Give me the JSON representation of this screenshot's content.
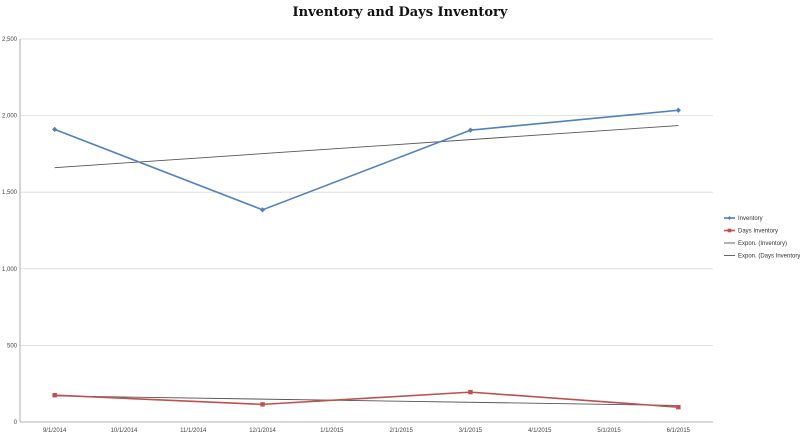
{
  "chart_data": {
    "type": "line",
    "title": "Inventory and Days Inventory",
    "xlabel": "",
    "ylabel": "",
    "categories": [
      "9/1/2014",
      "10/1/2014",
      "11/1/2014",
      "12/1/2014",
      "1/1/2015",
      "2/1/2015",
      "3/1/2015",
      "4/1/2015",
      "5/1/2015",
      "6/1/2015"
    ],
    "yticks": [
      "0",
      "500",
      "1,000",
      "1,500",
      "2,000",
      "2,500"
    ],
    "ylim": [
      0,
      2500
    ],
    "grid": true,
    "legend_position": "right",
    "series": [
      {
        "name": "Inventory",
        "color": "#4f81bd",
        "marker": "diamond",
        "points": [
          {
            "x": "9/1/2014",
            "y": 1910
          },
          {
            "x": "12/1/2014",
            "y": 1385
          },
          {
            "x": "3/1/2015",
            "y": 1905
          },
          {
            "x": "6/1/2015",
            "y": 2035
          }
        ]
      },
      {
        "name": "Days Inventory",
        "color": "#c0504d",
        "marker": "square",
        "points": [
          {
            "x": "9/1/2014",
            "y": 175
          },
          {
            "x": "12/1/2014",
            "y": 115
          },
          {
            "x": "3/1/2015",
            "y": 195
          },
          {
            "x": "6/1/2015",
            "y": 97
          }
        ]
      }
    ],
    "trendlines": [
      {
        "name": "Expon. (Inventory)",
        "color": "#555555",
        "start": {
          "x": "9/1/2014",
          "y": 1660
        },
        "end": {
          "x": "6/1/2015",
          "y": 1935
        }
      },
      {
        "name": "Expon. (Days Inventory)",
        "color": "#555555",
        "start": {
          "x": "9/1/2014",
          "y": 170
        },
        "end": {
          "x": "6/1/2015",
          "y": 108
        }
      }
    ]
  }
}
